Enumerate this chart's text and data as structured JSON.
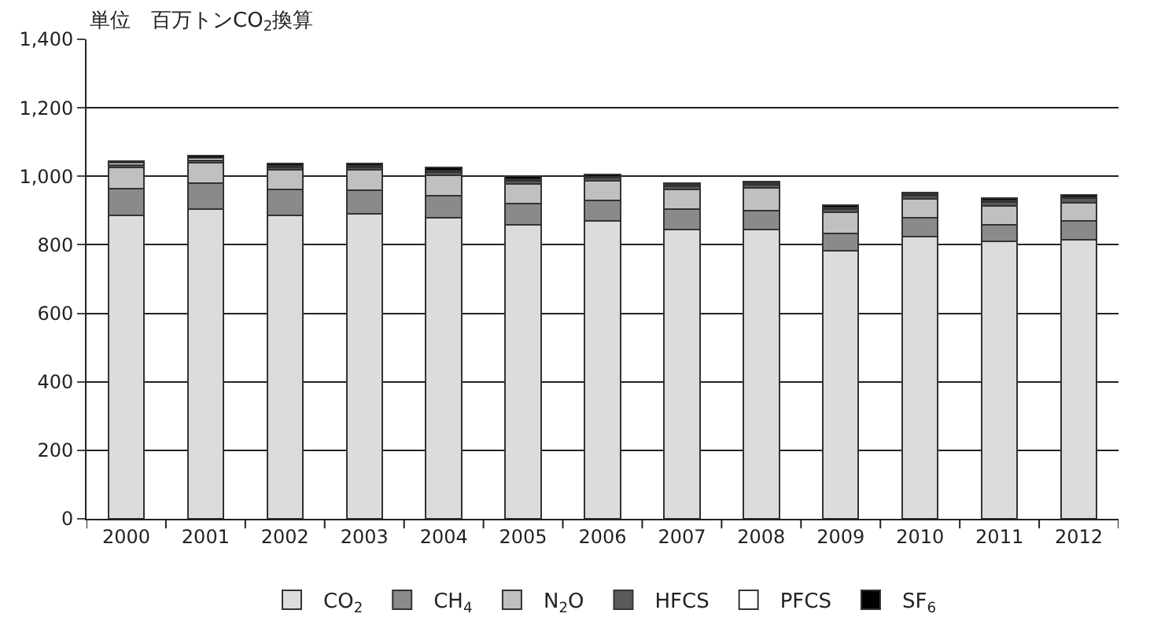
{
  "chart_data": {
    "type": "bar",
    "stacked": true,
    "ylabel": "単位　百万トンCO$_{2}$換算",
    "categories": [
      "2000",
      "2001",
      "2002",
      "2003",
      "2004",
      "2005",
      "2006",
      "2007",
      "2008",
      "2009",
      "2010",
      "2011",
      "2012"
    ],
    "series": [
      {
        "name": "CO$_{2}$",
        "color": "#dcdcdc",
        "values": [
          886,
          905,
          886,
          891,
          878,
          858,
          869,
          844,
          844,
          782,
          824,
          811,
          815
        ]
      },
      {
        "name": "CH$_{4}$",
        "color": "#8a8a8a",
        "values": [
          79,
          76,
          76,
          68,
          65,
          63,
          60,
          61,
          56,
          52,
          55,
          47,
          54
        ]
      },
      {
        "name": "N$_{2}$O",
        "color": "#c0c0c0",
        "values": [
          61,
          58,
          56,
          59,
          60,
          56,
          57,
          57,
          67,
          61,
          54,
          55,
          53
        ]
      },
      {
        "name": "HFCS",
        "color": "#5a5a5a",
        "values": [
          7,
          8,
          7,
          7,
          9,
          10,
          9,
          9,
          9,
          10,
          11,
          13,
          14
        ]
      },
      {
        "name": "PFCS",
        "color": "#ffffff",
        "values": [
          6,
          6,
          5,
          5,
          5,
          5,
          4,
          4,
          3,
          3,
          3,
          4,
          3
        ]
      },
      {
        "name": "SF$_{6}$",
        "color": "#000000",
        "values": [
          6,
          7,
          8,
          8,
          9,
          8,
          7,
          6,
          6,
          7,
          5,
          6,
          7
        ]
      }
    ],
    "ylim": [
      0,
      1400
    ],
    "yticks": [
      0,
      200,
      400,
      600,
      800,
      {
        "value": 1000,
        "label": "1,000"
      },
      {
        "value": 1200,
        "label": "1,200"
      },
      {
        "value": 1400,
        "label": "1,400"
      }
    ],
    "grid": "y",
    "legend": "bottom"
  }
}
